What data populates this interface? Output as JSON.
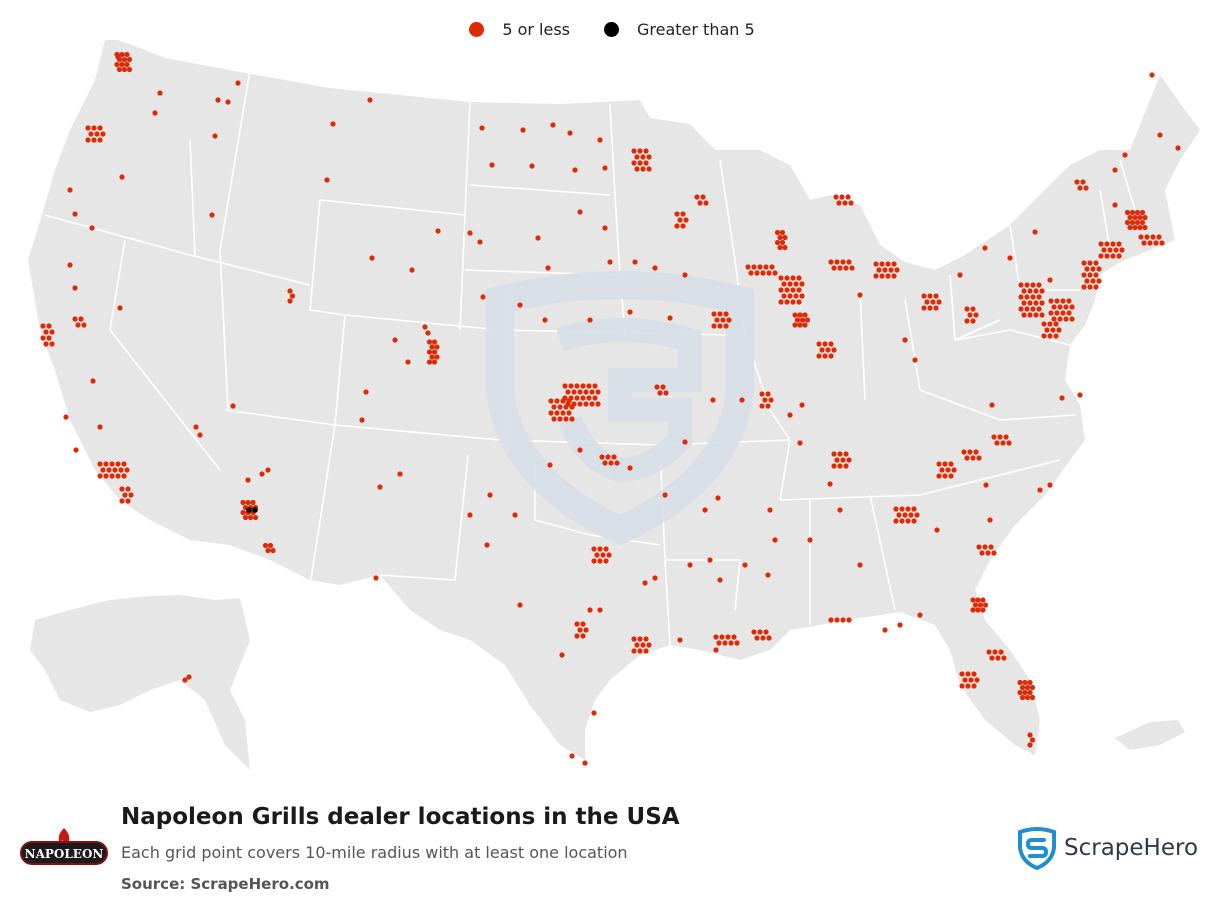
{
  "legend": {
    "items": [
      {
        "label": "5 or less",
        "color": "#e02a05"
      },
      {
        "label": "Greater than 5",
        "color": "#000000"
      }
    ]
  },
  "map": {
    "land_color": "#e6e6e6",
    "border_color": "#ffffff",
    "watermark_color": "#dbe3ea"
  },
  "footer": {
    "title": "Napoleon Grills dealer locations in the USA",
    "subtitle": "Each grid point covers 10-mile radius with at least one location",
    "source": "Source: ScrapeHero.com"
  },
  "logos": {
    "brand_wordmark": "NAPOLEON",
    "brand_color": "#8b0d0d",
    "scrapehero_name": "ScrapeHero",
    "scrapehero_color": "#1f8fd0",
    "brand_icon": "flame-icon",
    "scrapehero_icon": "shield-s-icon"
  }
}
